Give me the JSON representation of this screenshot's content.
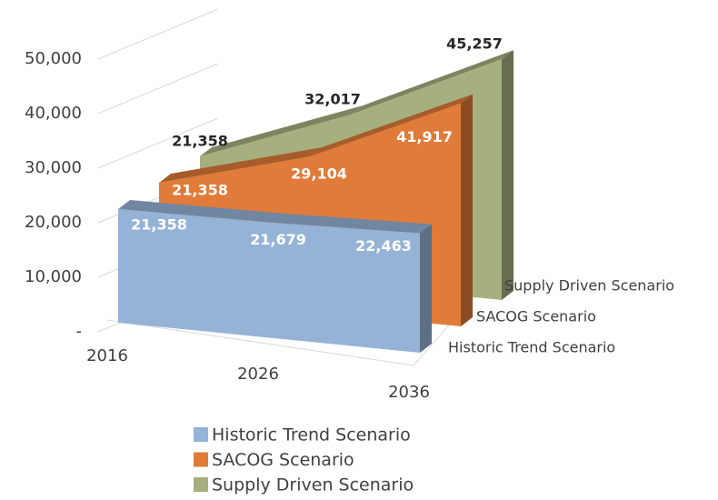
{
  "chart_data": {
    "type": "area3d",
    "categories": [
      "2016",
      "2026",
      "2036"
    ],
    "series": [
      {
        "name": "Historic Trend Scenario",
        "color": "#95b3d7",
        "values": [
          21358,
          21679,
          22463
        ],
        "value_labels": [
          "21,358",
          "21,679",
          "22,463"
        ]
      },
      {
        "name": "SACOG Scenario",
        "color": "#e07b39",
        "values": [
          21358,
          29104,
          41917
        ],
        "value_labels": [
          "21,358",
          "29,104",
          "41,917"
        ]
      },
      {
        "name": "Supply Driven Scenario",
        "color": "#a6b07e",
        "values": [
          21358,
          32017,
          45257
        ],
        "value_labels": [
          "21,358",
          "32,017",
          "45,257"
        ]
      }
    ],
    "ylim": [
      0,
      50000
    ],
    "yticks": [
      {
        "value": 0,
        "label": "-"
      },
      {
        "value": 10000,
        "label": "10,000"
      },
      {
        "value": 20000,
        "label": "20,000"
      },
      {
        "value": 30000,
        "label": "30,000"
      },
      {
        "value": 40000,
        "label": "40,000"
      },
      {
        "value": 50000,
        "label": "50,000"
      }
    ],
    "grid": true,
    "legend": "bottom"
  }
}
